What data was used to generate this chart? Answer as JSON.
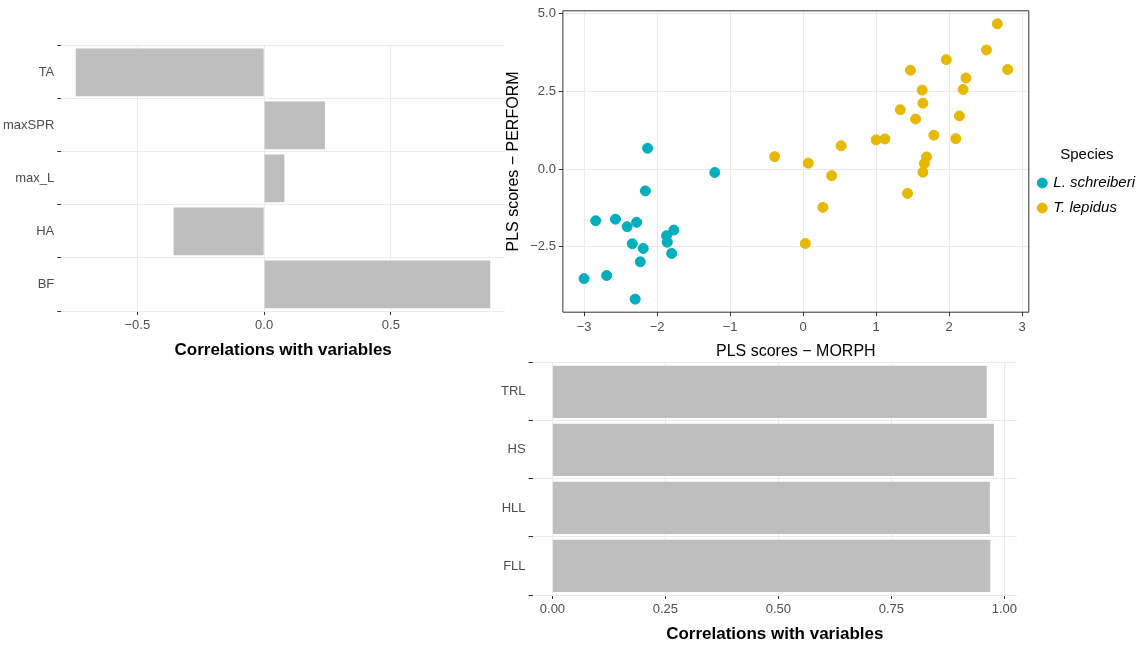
{
  "chart_data": [
    {
      "type": "bar",
      "orientation": "horizontal",
      "categories": [
        "TA",
        "maxSPR",
        "max_L",
        "HA",
        "BF"
      ],
      "values": [
        -0.743,
        0.24,
        0.08,
        -0.357,
        0.892
      ],
      "color": "#bebebe",
      "xlabel": "Correlations with variables",
      "xlim": [
        -0.8,
        0.95
      ],
      "xticks": [
        {
          "value": -0.5,
          "label": "−0.5"
        },
        {
          "value": 0,
          "label": "0.0"
        },
        {
          "value": 0.5,
          "label": "0.5"
        }
      ],
      "grid": true
    },
    {
      "type": "scatter",
      "xlabel": "PLS scores − MORPH",
      "ylabel": "PLS scores − PERFORM",
      "legend_title": "Species",
      "legend": "right",
      "marker": "circle",
      "xlim": [
        -3.29,
        3.09
      ],
      "xticks": [
        {
          "value": -3,
          "label": "−3"
        },
        {
          "value": -2,
          "label": "−2"
        },
        {
          "value": -1,
          "label": "−1"
        },
        0,
        1,
        2,
        3
      ],
      "ylim": [
        -4.6,
        5.09
      ],
      "yticks": [
        {
          "value": -2.5,
          "label": "−2.5"
        },
        {
          "value": 0,
          "label": "0.0"
        },
        2.5,
        {
          "value": 5,
          "label": "5.0"
        }
      ],
      "grid": true,
      "series": [
        {
          "name": "L. schreiberi",
          "color": "#00afbb",
          "x": [
            -3.0,
            -2.84,
            -2.69,
            -2.57,
            -2.41,
            -2.34,
            -2.28,
            -2.3,
            -2.19,
            -2.23,
            -2.16,
            -2.13,
            -1.87,
            -1.86,
            -1.77,
            -1.8,
            -1.21
          ],
          "values": [
            -3.52,
            -1.66,
            -3.42,
            -1.61,
            -1.85,
            -2.4,
            -1.71,
            -4.18,
            -2.55,
            -2.98,
            -0.7,
            0.67,
            -2.14,
            -2.35,
            -1.96,
            -2.71,
            -0.11
          ]
        },
        {
          "name": "T. lepidus",
          "color": "#e7b800",
          "x": [
            -0.39,
            0.07,
            0.03,
            0.39,
            0.27,
            0.52,
            1.0,
            1.12,
            1.33,
            1.47,
            1.43,
            1.54,
            1.63,
            1.64,
            1.64,
            1.66,
            1.69,
            1.79,
            1.96,
            2.09,
            2.14,
            2.19,
            2.23,
            2.51,
            2.66,
            2.8
          ],
          "values": [
            0.4,
            0.19,
            -2.39,
            -0.21,
            -1.23,
            0.75,
            0.94,
            0.97,
            1.91,
            3.18,
            -0.78,
            1.61,
            2.54,
            2.12,
            -0.1,
            0.18,
            0.39,
            1.09,
            3.52,
            0.98,
            1.71,
            2.56,
            2.93,
            3.83,
            4.67,
            3.2
          ]
        }
      ]
    },
    {
      "type": "bar",
      "orientation": "horizontal",
      "categories": [
        "TRL",
        "HS",
        "HLL",
        "FLL"
      ],
      "values": [
        0.961,
        0.977,
        0.968,
        0.969
      ],
      "color": "#bebebe",
      "xlabel": "Correlations with variables",
      "xlim": [
        -0.044,
        1.028
      ],
      "xticks": [
        {
          "value": 0,
          "label": "0.00"
        },
        {
          "value": 0.25,
          "label": "0.25"
        },
        {
          "value": 0.5,
          "label": "0.50"
        },
        {
          "value": 0.75,
          "label": "0.75"
        },
        {
          "value": 1,
          "label": "1.00"
        }
      ],
      "grid": true
    }
  ]
}
